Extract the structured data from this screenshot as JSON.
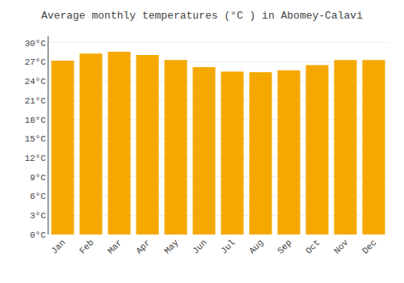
{
  "chart_data": {
    "type": "bar",
    "title": "Average monthly temperatures (°C ) in Abomey-Calavi",
    "categories": [
      "Jan",
      "Feb",
      "Mar",
      "Apr",
      "May",
      "Jun",
      "Jul",
      "Aug",
      "Sep",
      "Oct",
      "Nov",
      "Dec"
    ],
    "values": [
      27.2,
      28.3,
      28.6,
      28.1,
      27.3,
      26.2,
      25.5,
      25.4,
      25.7,
      26.5,
      27.3,
      27.3
    ],
    "color": "#F5A800",
    "ylim": [
      0,
      31
    ],
    "yticks": [
      {
        "value": 0,
        "label": "0°C"
      },
      {
        "value": 3,
        "label": "3°C"
      },
      {
        "value": 6,
        "label": "6°C"
      },
      {
        "value": 9,
        "label": "9°C"
      },
      {
        "value": 12,
        "label": "12°C"
      },
      {
        "value": 15,
        "label": "15°C"
      },
      {
        "value": 18,
        "label": "18°C"
      },
      {
        "value": 21,
        "label": "21°C"
      },
      {
        "value": 24,
        "label": "24°C"
      },
      {
        "value": 27,
        "label": "27°C"
      },
      {
        "value": 30,
        "label": "30°C"
      }
    ],
    "grid": true
  }
}
